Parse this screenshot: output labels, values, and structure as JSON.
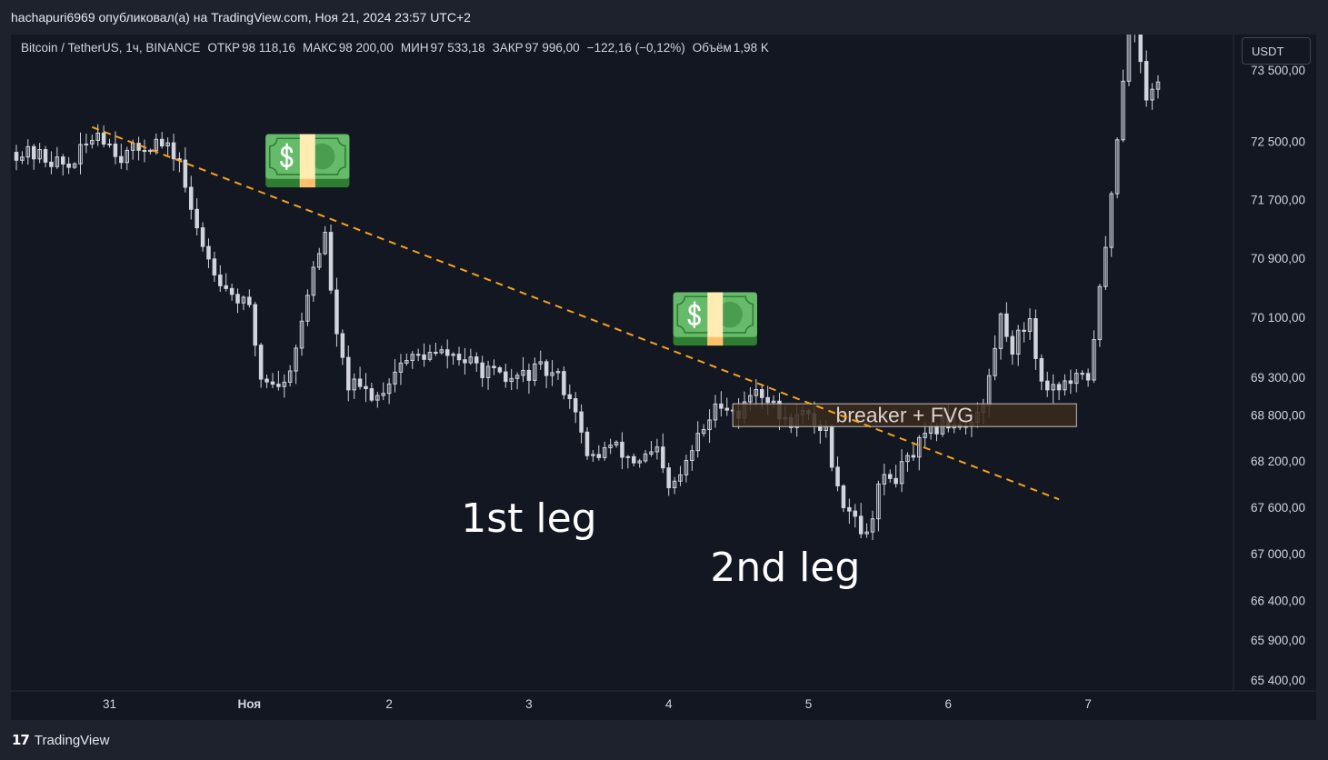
{
  "publication": {
    "text": "hachapuri6969 опубликовал(а) на TradingView.com, Ноя 21, 2024 23:57 UTC+2"
  },
  "legend": {
    "symbol": "Bitcoin / TetherUS, 1ч, BINANCE",
    "open_label": "ОТКР",
    "open_value": "98 118,16",
    "high_label": "МАКС",
    "high_value": "98 200,00",
    "low_label": "МИН",
    "low_value": "97 533,18",
    "close_label": "ЗАКР",
    "close_value": "97 996,00",
    "change": "−122,16 (−0,12%)",
    "volume_label": "Объём",
    "volume_value": "1,98 K"
  },
  "currency_button": "USDT",
  "footer": {
    "brand": "TradingView",
    "logo_glyph": "17"
  },
  "colors": {
    "background": "#131722",
    "candle": "#d1d4dc",
    "trendline": "#f7a21b",
    "zone_fill": "#3b2a1c",
    "zone_border": "#c7c2bb",
    "axis_text": "#d1d4dc"
  },
  "chart_data": {
    "type": "candlestick",
    "title": "Bitcoin / TetherUS, 1ч, BINANCE",
    "y_axis": {
      "ticks": [
        73500,
        72500,
        71700,
        70900,
        70100,
        69300,
        68800,
        68200,
        67600,
        67000,
        66400,
        65900,
        65400
      ],
      "tick_labels": [
        "73 500,00",
        "72 500,00",
        "71 700,00",
        "70 900,00",
        "70 100,00",
        "69 300,00",
        "68 800,00",
        "68 200,00",
        "67 600,00",
        "67 000,00",
        "66 400,00",
        "65 900,00",
        "65 400,00"
      ],
      "scale": "log"
    },
    "x_axis": {
      "tick_labels": [
        "31",
        "Ноя",
        "2",
        "3",
        "4",
        "5",
        "6",
        "7"
      ],
      "tick_dates": [
        "2024-10-31",
        "2024-11-01",
        "2024-11-02",
        "2024-11-03",
        "2024-11-04",
        "2024-11-05",
        "2024-11-06",
        "2024-11-07"
      ],
      "range": [
        "2024-10-30T08:00",
        "2024-11-07T12:00"
      ]
    },
    "ylim": [
      64900,
      74000
    ],
    "keypoints": [
      [
        "2024-10-30T08:00",
        72350
      ],
      [
        "2024-10-30T12:00",
        72300
      ],
      [
        "2024-10-30T17:00",
        72150
      ],
      [
        "2024-10-30T22:00",
        72650
      ],
      [
        "2024-10-31T02:00",
        72300
      ],
      [
        "2024-10-31T05:00",
        72400
      ],
      [
        "2024-10-31T08:00",
        72500
      ],
      [
        "2024-10-31T12:00",
        72250
      ],
      [
        "2024-10-31T14:00",
        71500
      ],
      [
        "2024-10-31T17:00",
        70900
      ],
      [
        "2024-10-31T20:00",
        70500
      ],
      [
        "2024-11-01T00:00",
        70200
      ],
      [
        "2024-11-01T02:00",
        69300
      ],
      [
        "2024-11-01T06:00",
        69200
      ],
      [
        "2024-11-01T09:00",
        70000
      ],
      [
        "2024-11-01T11:00",
        70800
      ],
      [
        "2024-11-01T13:00",
        71200
      ],
      [
        "2024-11-01T15:00",
        69800
      ],
      [
        "2024-11-01T17:00",
        69200
      ],
      [
        "2024-11-01T22:00",
        69050
      ],
      [
        "2024-11-02T02:00",
        69500
      ],
      [
        "2024-11-02T06:00",
        69600
      ],
      [
        "2024-11-02T11:00",
        69600
      ],
      [
        "2024-11-02T16:00",
        69400
      ],
      [
        "2024-11-02T20:00",
        69250
      ],
      [
        "2024-11-03T02:00",
        69400
      ],
      [
        "2024-11-03T05:00",
        69300
      ],
      [
        "2024-11-03T08:00",
        68900
      ],
      [
        "2024-11-03T10:00",
        68200
      ],
      [
        "2024-11-03T14:00",
        68400
      ],
      [
        "2024-11-03T18:00",
        68200
      ],
      [
        "2024-11-03T22:00",
        68300
      ],
      [
        "2024-11-04T00:00",
        67800
      ],
      [
        "2024-11-04T02:00",
        68000
      ],
      [
        "2024-11-04T05:00",
        68500
      ],
      [
        "2024-11-04T09:00",
        69000
      ],
      [
        "2024-11-04T12:00",
        68800
      ],
      [
        "2024-11-04T15:00",
        69200
      ],
      [
        "2024-11-04T18:00",
        68900
      ],
      [
        "2024-11-04T20:00",
        68700
      ],
      [
        "2024-11-04T23:00",
        68800
      ],
      [
        "2024-11-05T03:00",
        68600
      ],
      [
        "2024-11-05T05:00",
        67800
      ],
      [
        "2024-11-05T08:00",
        67500
      ],
      [
        "2024-11-05T10:00",
        67200
      ],
      [
        "2024-11-05T12:00",
        67900
      ],
      [
        "2024-11-05T15:00",
        68000
      ],
      [
        "2024-11-05T19:00",
        68400
      ],
      [
        "2024-11-05T23:00",
        68700
      ],
      [
        "2024-11-06T03:00",
        68700
      ],
      [
        "2024-11-06T06:00",
        68900
      ],
      [
        "2024-11-06T09:00",
        70100
      ],
      [
        "2024-11-06T11:00",
        69700
      ],
      [
        "2024-11-06T14:00",
        70100
      ],
      [
        "2024-11-06T16:00",
        69200
      ],
      [
        "2024-11-06T20:00",
        69200
      ],
      [
        "2024-11-07T00:00",
        69300
      ],
      [
        "2024-11-07T03:00",
        71000
      ],
      [
        "2024-11-07T05:00",
        72600
      ],
      [
        "2024-11-07T07:00",
        74200
      ],
      [
        "2024-11-07T09:00",
        73700
      ],
      [
        "2024-11-07T10:00",
        73000
      ],
      [
        "2024-11-07T12:00",
        73400
      ]
    ],
    "annotations": {
      "trendline": {
        "start": [
          "2024-10-30T21:00",
          72700
        ],
        "end": [
          "2024-11-06T19:00",
          67700
        ],
        "style": "dashed"
      },
      "zone": {
        "label": "breaker + FVG",
        "time_start": "2024-11-04T11:00",
        "time_end": "2024-11-06T22:00",
        "price_high": 68950,
        "price_low": 68650
      },
      "labels": [
        {
          "text": "1st leg",
          "time": "2024-11-03T00:00",
          "price": 67280
        },
        {
          "text": "2nd leg",
          "time": "2024-11-04T20:00",
          "price": 66650
        }
      ],
      "emoji_markers": [
        {
          "glyph": "💵",
          "time": "2024-11-01T10:00",
          "price": 72150
        },
        {
          "glyph": "💵",
          "time": "2024-11-04T08:00",
          "price": 70000
        }
      ]
    }
  }
}
